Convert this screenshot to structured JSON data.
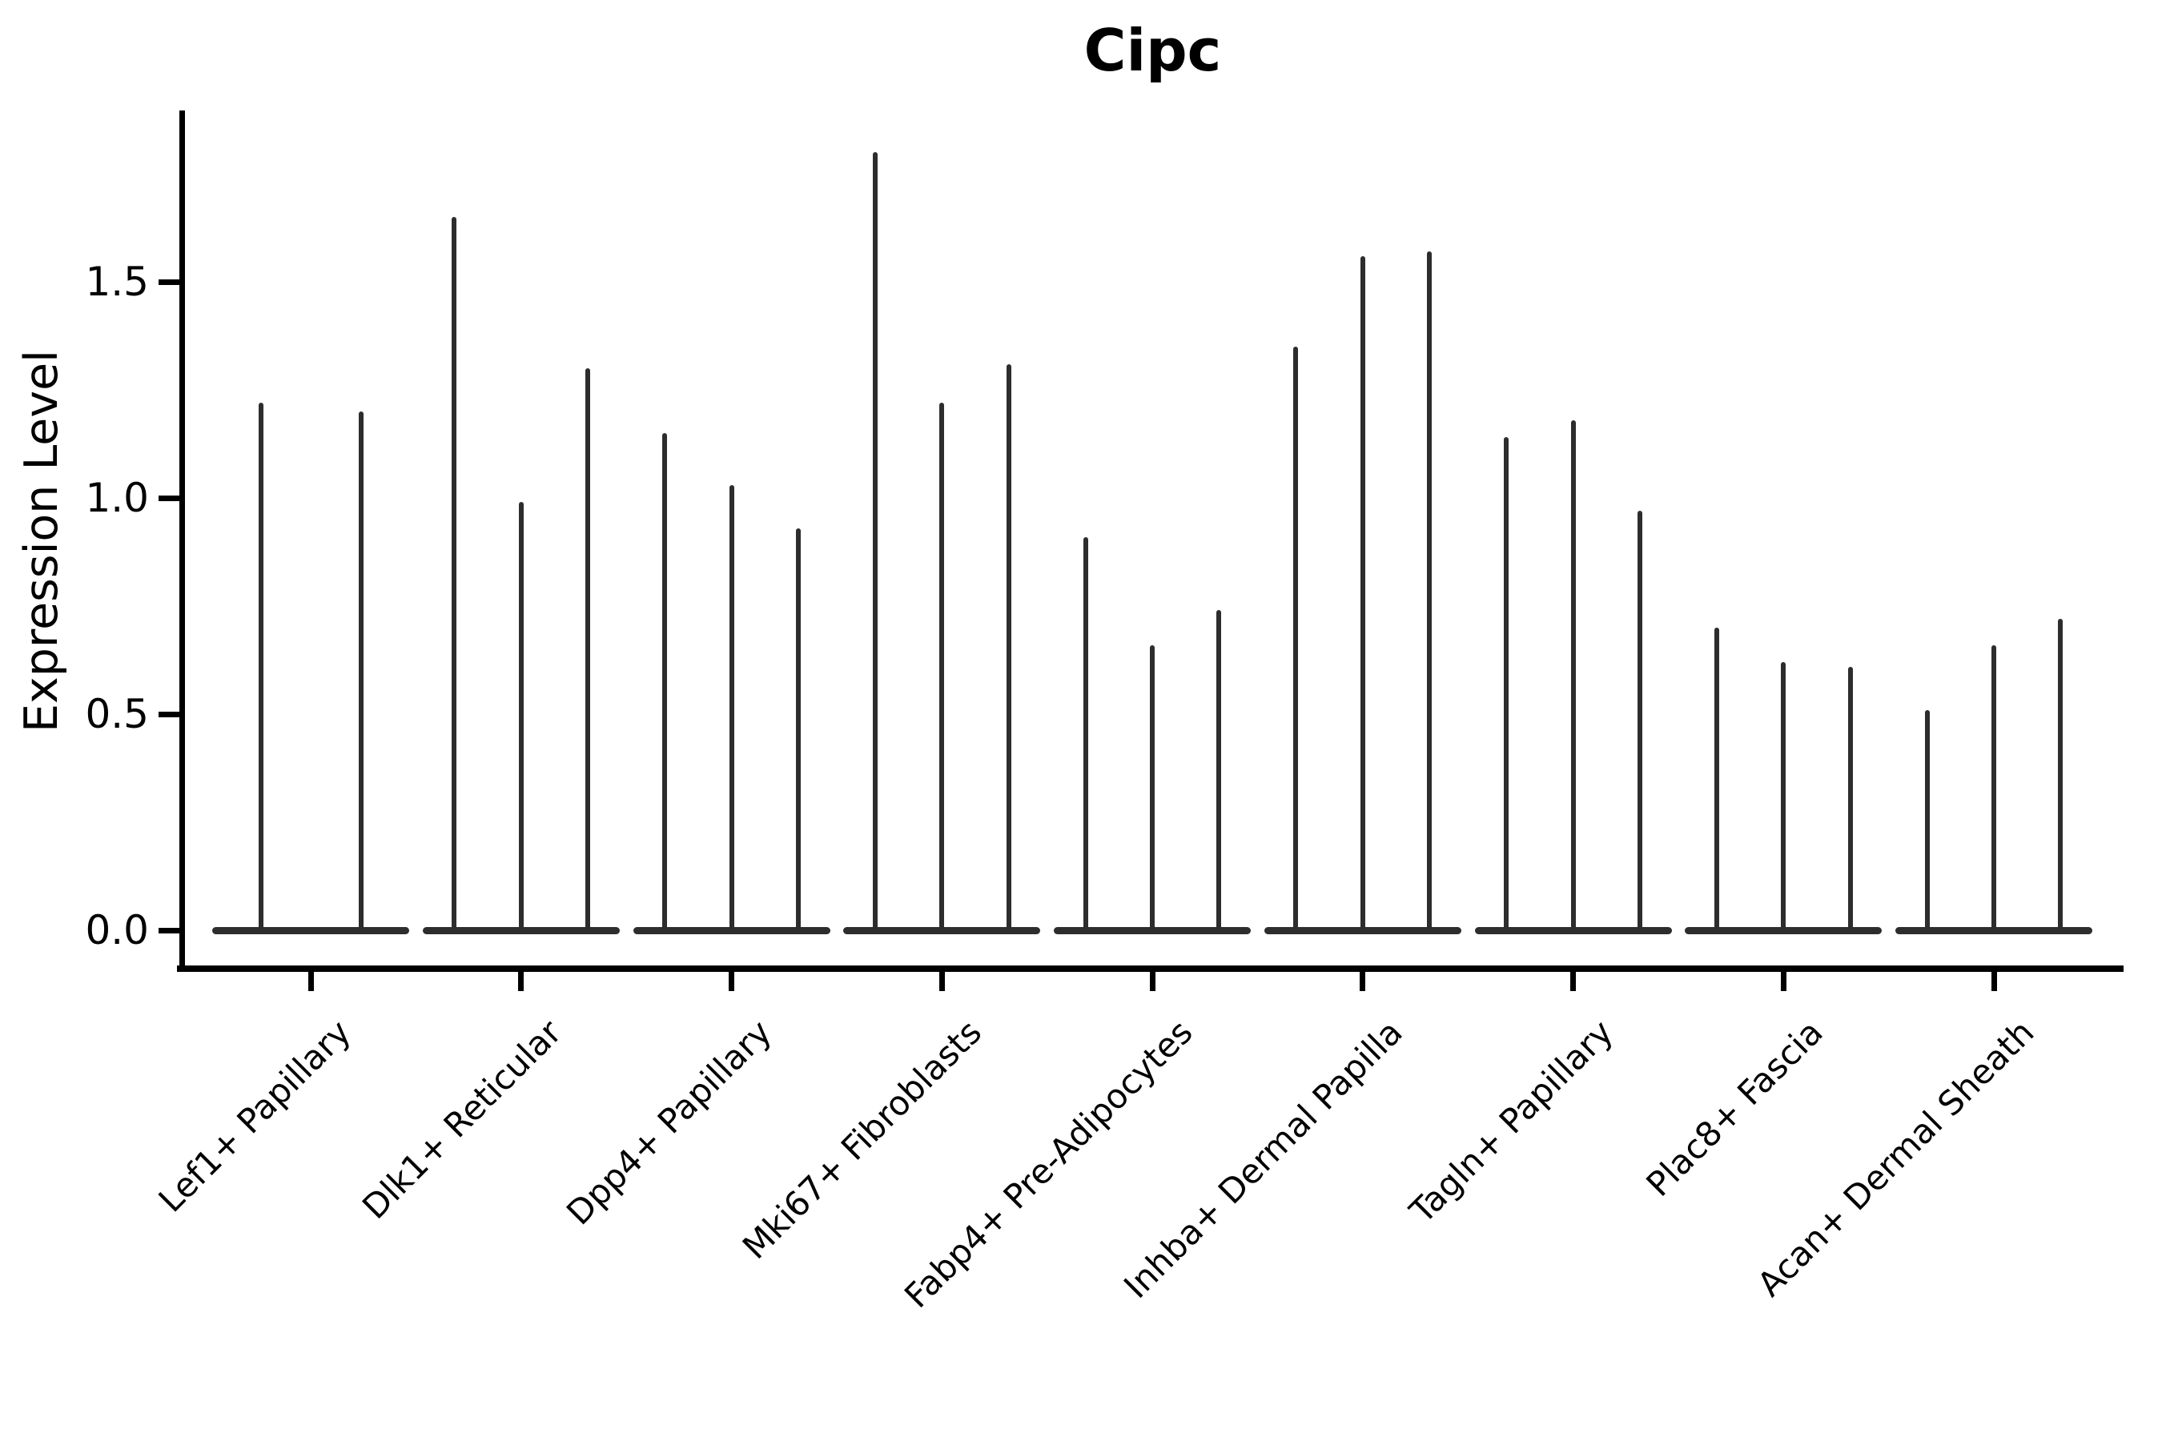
{
  "figure": {
    "title": "Cipc",
    "background_color": "#ffffff",
    "axis_color": "#000000",
    "violin_color": "#2d2d2d"
  },
  "chart_data": {
    "type": "violin",
    "title": "Cipc",
    "xlabel": "",
    "ylabel": "Expression Level",
    "categories": [
      "Lef1+ Papillary",
      "Dlk1+ Reticular",
      "Dpp4+ Papillary",
      "Mki67+ Fibroblasts",
      "Fabp4+ Pre-Adipocytes",
      "Inhba+ Dermal Papilla",
      "Tagln+ Papillary",
      "Plac8+ Fascia",
      "Acan+ Dermal Sheath"
    ],
    "series": [
      {
        "category": "Lef1+ Papillary",
        "violin_peak_heights": [
          1.22,
          1.2
        ]
      },
      {
        "category": "Dlk1+ Reticular",
        "violin_peak_heights": [
          1.65,
          0.99,
          1.3
        ]
      },
      {
        "category": "Dpp4+ Papillary",
        "violin_peak_heights": [
          1.15,
          1.03,
          0.93
        ]
      },
      {
        "category": "Mki67+ Fibroblasts",
        "violin_peak_heights": [
          1.8,
          1.22,
          1.31
        ]
      },
      {
        "category": "Fabp4+ Pre-Adipocytes",
        "violin_peak_heights": [
          0.91,
          0.66,
          0.74
        ]
      },
      {
        "category": "Inhba+ Dermal Papilla",
        "violin_peak_heights": [
          1.35,
          1.56,
          1.57
        ]
      },
      {
        "category": "Tagln+ Papillary",
        "violin_peak_heights": [
          1.14,
          1.18,
          0.97
        ]
      },
      {
        "category": "Plac8+ Fascia",
        "violin_peak_heights": [
          0.7,
          0.62,
          0.61
        ]
      },
      {
        "category": "Acan+ Dermal Sheath",
        "violin_peak_heights": [
          0.51,
          0.66,
          0.72
        ]
      }
    ],
    "ytick_labels": [
      "0.0",
      "0.5",
      "1.0",
      "1.5"
    ],
    "ytick_values": [
      0.0,
      0.5,
      1.0,
      1.5
    ],
    "ylim": [
      -0.09,
      1.89
    ],
    "grid": false,
    "legend": null,
    "description": "Violin plot; each category shows 2-3 very narrow violins (wide flat base at 0 with a thin spike up to the listed peak expression value)."
  }
}
